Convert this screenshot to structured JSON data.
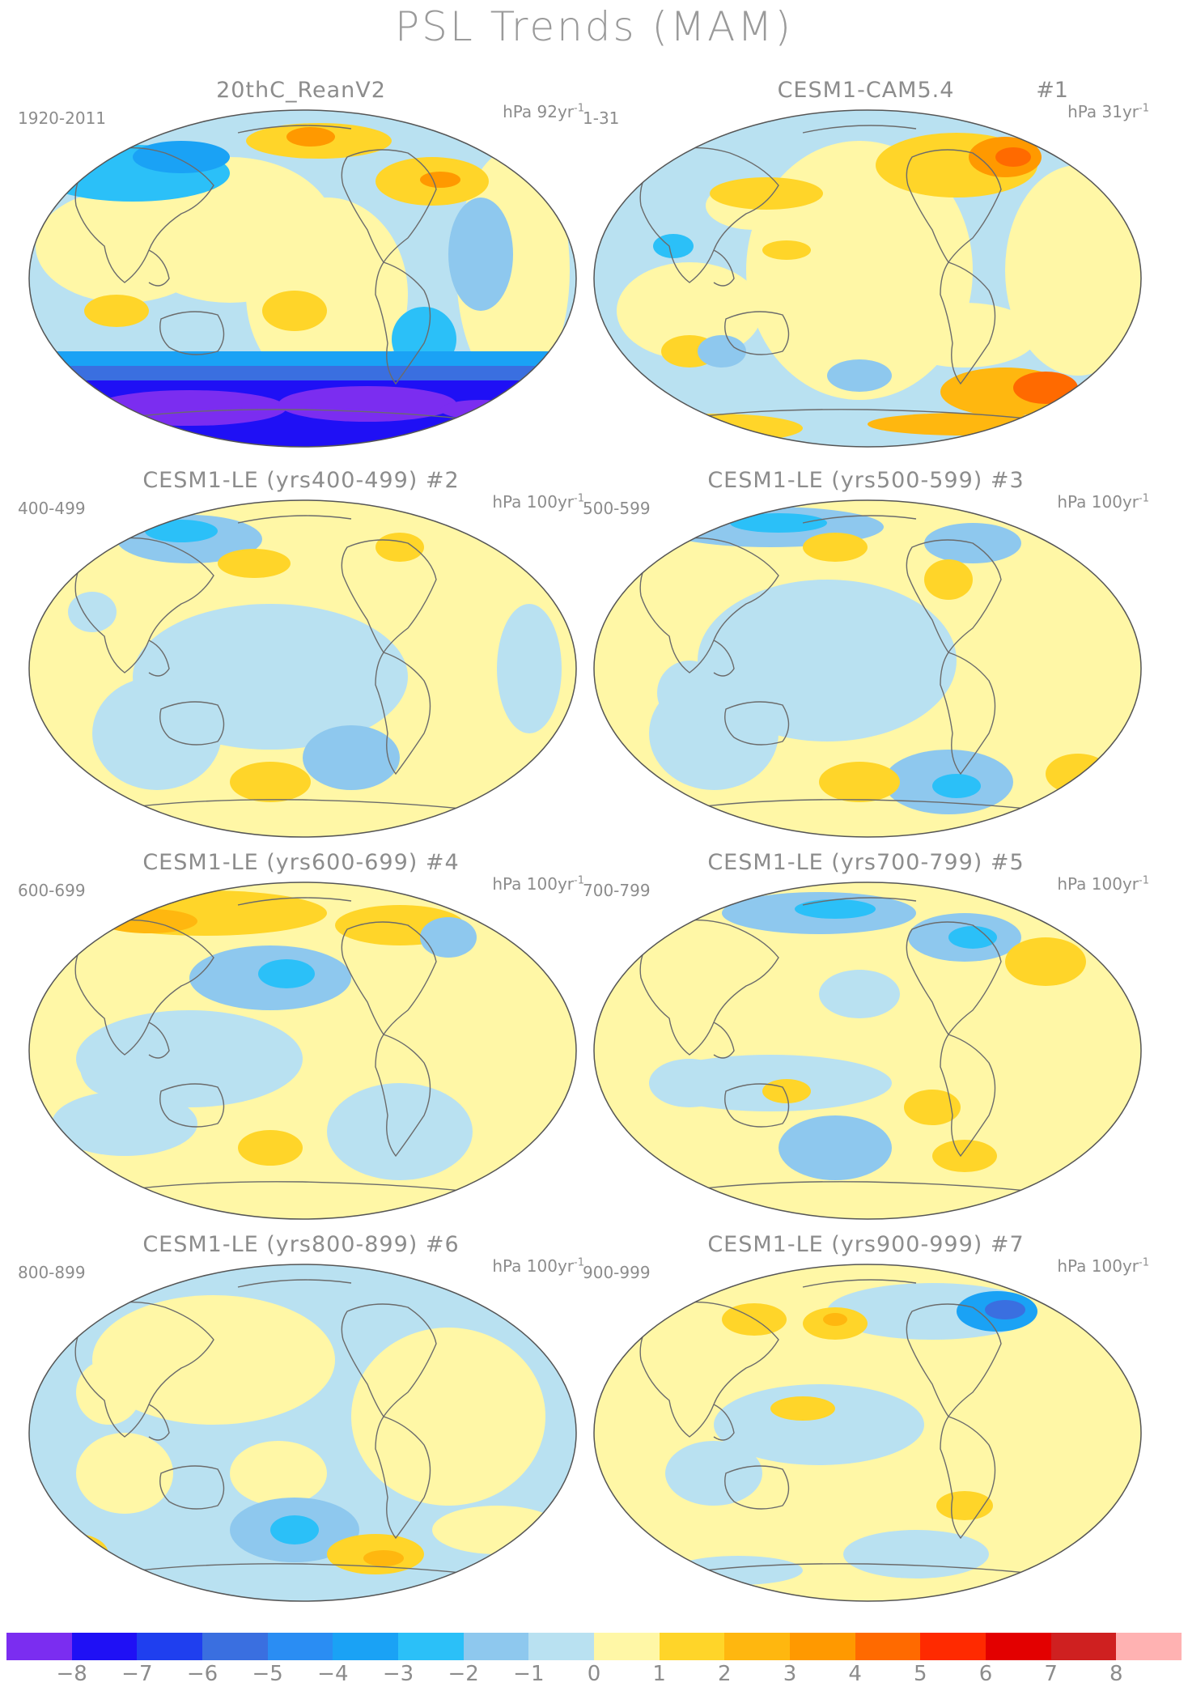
{
  "title": "PSL Trends (MAM)",
  "panels": [
    {
      "title": "20thC_ReanV2",
      "number": "",
      "range": "1920-2011",
      "units": "hPa 92yr",
      "units_exp": "-1",
      "scheme": "reanalysis"
    },
    {
      "title": "CESM1-CAM5.4",
      "number": "#1",
      "range": "1-31",
      "units": "hPa 31yr",
      "units_exp": "-1",
      "scheme": "cam54"
    },
    {
      "title": "CESM1-LE (yrs400-499) #2",
      "number": "",
      "range": "400-499",
      "units": "hPa 100yr",
      "units_exp": "-1",
      "scheme": "le2"
    },
    {
      "title": "CESM1-LE (yrs500-599) #3",
      "number": "",
      "range": "500-599",
      "units": "hPa 100yr",
      "units_exp": "-1",
      "scheme": "le3"
    },
    {
      "title": "CESM1-LE (yrs600-699) #4",
      "number": "",
      "range": "600-699",
      "units": "hPa 100yr",
      "units_exp": "-1",
      "scheme": "le4"
    },
    {
      "title": "CESM1-LE (yrs700-799) #5",
      "number": "",
      "range": "700-799",
      "units": "hPa 100yr",
      "units_exp": "-1",
      "scheme": "le5"
    },
    {
      "title": "CESM1-LE (yrs800-899) #6",
      "number": "",
      "range": "800-899",
      "units": "hPa 100yr",
      "units_exp": "-1",
      "scheme": "le6"
    },
    {
      "title": "CESM1-LE (yrs900-999) #7",
      "number": "",
      "range": "900-999",
      "units": "hPa 100yr",
      "units_exp": "-1",
      "scheme": "le7"
    }
  ],
  "colorbar": {
    "colors": [
      "#7b2df0",
      "#1f10f5",
      "#1f3fef",
      "#3a6fe0",
      "#2a8df3",
      "#1aa2f5",
      "#2bc0f8",
      "#8ec8ee",
      "#b9e1f1",
      "#fff7a6",
      "#ffd529",
      "#ffb70f",
      "#ff9900",
      "#ff6a00",
      "#ff2a00",
      "#e30000",
      "#cf2020",
      "#ffb2b2"
    ],
    "ticks": [
      "−8",
      "−7",
      "−6",
      "−5",
      "−4",
      "−3",
      "−2",
      "−1",
      "0",
      "1",
      "2",
      "3",
      "4",
      "5",
      "6",
      "7",
      "8"
    ]
  }
}
